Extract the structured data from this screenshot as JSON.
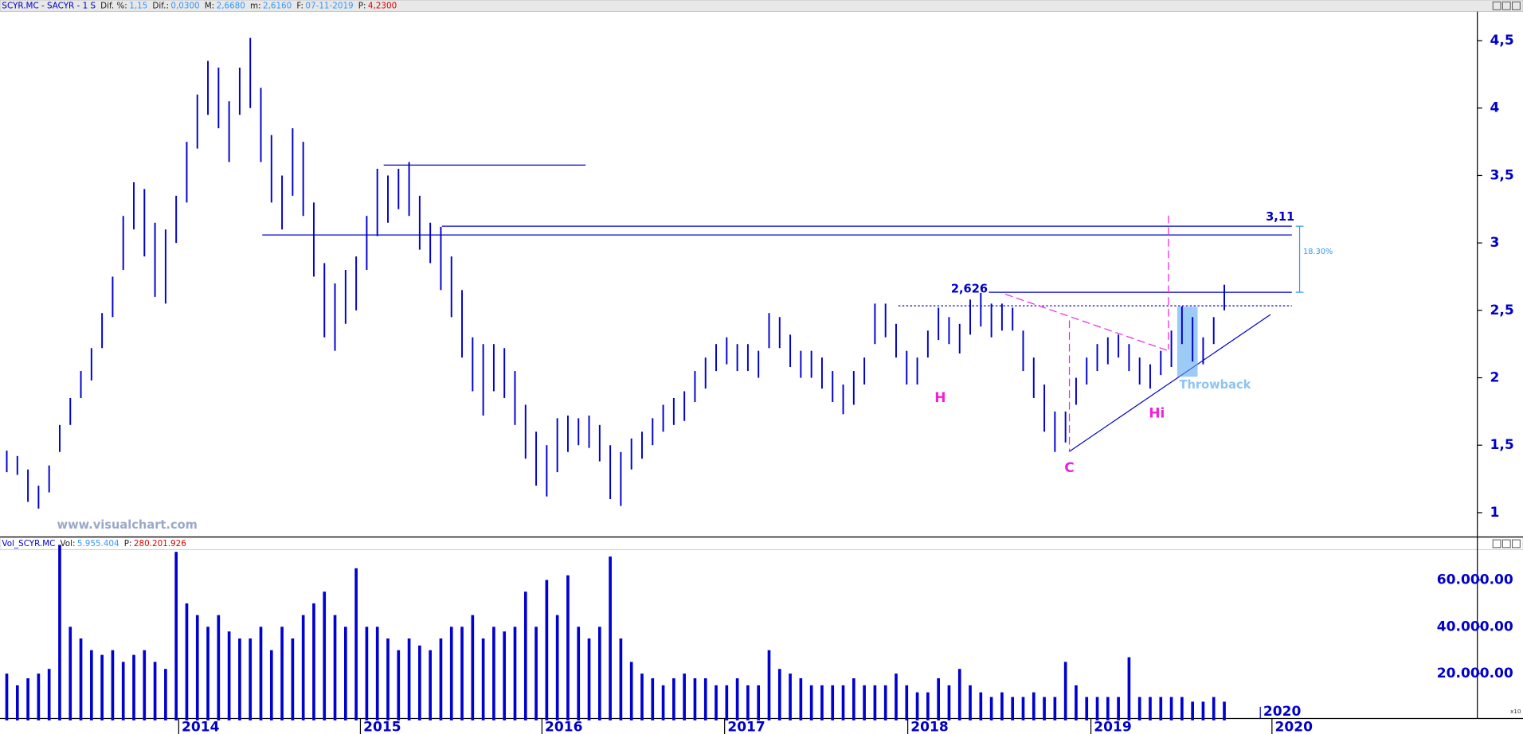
{
  "chart_data": [
    {
      "type": "ohlc",
      "header": {
        "title": "SCYR.MC - SACYR -  1 S",
        "fields": [
          {
            "label": "Dif. %:",
            "value": "1,15"
          },
          {
            "label": "Dif.:",
            "value": "0,0300"
          },
          {
            "label": "M:",
            "value": "2,6680"
          },
          {
            "label": "m:",
            "value": "2,6160"
          },
          {
            "label": "F:",
            "value": "07-11-2019"
          },
          {
            "label": "P:",
            "value": "4,2300",
            "color": "#e00000"
          }
        ]
      },
      "watermark": "www.visualchart.com",
      "annotations": [
        "3,11",
        "2,626",
        "18.30%",
        "H",
        "C",
        "Hi",
        "Throwback"
      ],
      "color": "#0000d0",
      "high": [
        1.46,
        1.42,
        1.32,
        1.2,
        1.35,
        1.65,
        1.85,
        2.05,
        2.22,
        2.48,
        2.75,
        3.2,
        3.45,
        3.4,
        3.15,
        3.1,
        3.35,
        3.75,
        4.1,
        4.35,
        4.3,
        4.05,
        4.3,
        4.52,
        4.15,
        3.8,
        3.5,
        3.85,
        3.75,
        3.3,
        2.85,
        2.7,
        2.8,
        2.9,
        3.2,
        3.55,
        3.5,
        3.55,
        3.6,
        3.35,
        3.15,
        3.12,
        2.9,
        2.65,
        2.3,
        2.25,
        2.25,
        2.22,
        2.05,
        1.8,
        1.6,
        1.5,
        1.7,
        1.72,
        1.7,
        1.72,
        1.65,
        1.5,
        1.45,
        1.55,
        1.6,
        1.7,
        1.8,
        1.85,
        1.9,
        2.05,
        2.15,
        2.25,
        2.3,
        2.25,
        2.25,
        2.2,
        2.48,
        2.45,
        2.32,
        2.2,
        2.2,
        2.15,
        2.05,
        1.95,
        2.05,
        2.15,
        2.55,
        2.55,
        2.4,
        2.2,
        2.15,
        2.35,
        2.52,
        2.45,
        2.4,
        2.58,
        2.63,
        2.55,
        2.55,
        2.52,
        2.35,
        2.15,
        1.95,
        1.75,
        1.75,
        2.0,
        2.15,
        2.25,
        2.3,
        2.32,
        2.25,
        2.15,
        2.1,
        2.2,
        2.35,
        2.53,
        2.45,
        2.3,
        2.45,
        2.69
      ],
      "low": [
        1.3,
        1.28,
        1.08,
        1.03,
        1.15,
        1.45,
        1.65,
        1.85,
        1.98,
        2.22,
        2.45,
        2.8,
        3.1,
        2.9,
        2.6,
        2.55,
        3.0,
        3.3,
        3.7,
        3.95,
        3.85,
        3.6,
        3.95,
        4.0,
        3.6,
        3.3,
        3.1,
        3.35,
        3.2,
        2.75,
        2.3,
        2.2,
        2.4,
        2.5,
        2.8,
        3.05,
        3.15,
        3.25,
        3.2,
        2.95,
        2.85,
        2.65,
        2.45,
        2.15,
        1.9,
        1.72,
        1.9,
        1.85,
        1.65,
        1.4,
        1.2,
        1.12,
        1.3,
        1.45,
        1.5,
        1.48,
        1.38,
        1.1,
        1.05,
        1.32,
        1.4,
        1.5,
        1.6,
        1.65,
        1.68,
        1.82,
        1.92,
        2.05,
        2.1,
        2.05,
        2.05,
        2.0,
        2.22,
        2.22,
        2.08,
        2.0,
        2.0,
        1.92,
        1.82,
        1.73,
        1.8,
        1.95,
        2.25,
        2.3,
        2.15,
        1.95,
        1.95,
        2.15,
        2.28,
        2.25,
        2.18,
        2.32,
        2.38,
        2.3,
        2.35,
        2.35,
        2.05,
        1.85,
        1.6,
        1.45,
        1.52,
        1.8,
        1.95,
        2.05,
        2.1,
        2.15,
        2.05,
        1.95,
        1.92,
        2.02,
        2.08,
        2.25,
        2.12,
        2.1,
        2.25,
        2.5
      ],
      "xlim": [
        -0.64,
        138.9
      ],
      "ylim": [
        0.82,
        4.715
      ],
      "yticks": [
        {
          "value": 4.5,
          "label": "4,5"
        },
        4,
        {
          "value": 3.5,
          "label": "3,5"
        },
        3,
        {
          "value": 2.5,
          "label": "2,5"
        },
        2,
        {
          "value": 1.5,
          "label": "1,5"
        },
        1
      ]
    },
    {
      "type": "bar",
      "header": {
        "title": "Vol_SCYR.MC",
        "fields": [
          {
            "label": "Vol:",
            "value": "5.955.404"
          },
          {
            "label": "P:",
            "value": "280.201.926",
            "color": "#e00000"
          }
        ]
      },
      "color": "#0000d0",
      "values": [
        20000000,
        15000000,
        18000000,
        20000000,
        22000000,
        75000000,
        40000000,
        35000000,
        30000000,
        28000000,
        30000000,
        25000000,
        28000000,
        30000000,
        25000000,
        22000000,
        72000000,
        50000000,
        45000000,
        40000000,
        45000000,
        38000000,
        35000000,
        35000000,
        40000000,
        30000000,
        40000000,
        35000000,
        45000000,
        50000000,
        55000000,
        45000000,
        40000000,
        65000000,
        40000000,
        40000000,
        35000000,
        30000000,
        35000000,
        32000000,
        30000000,
        35000000,
        40000000,
        40000000,
        45000000,
        35000000,
        40000000,
        38000000,
        40000000,
        55000000,
        40000000,
        60000000,
        45000000,
        62000000,
        40000000,
        35000000,
        40000000,
        70000000,
        35000000,
        25000000,
        20000000,
        18000000,
        15000000,
        18000000,
        20000000,
        18000000,
        18000000,
        15000000,
        15000000,
        18000000,
        15000000,
        15000000,
        30000000,
        22000000,
        20000000,
        18000000,
        15000000,
        15000000,
        15000000,
        15000000,
        18000000,
        15000000,
        15000000,
        15000000,
        20000000,
        15000000,
        12000000,
        12000000,
        18000000,
        15000000,
        22000000,
        15000000,
        12000000,
        10000000,
        12000000,
        10000000,
        10000000,
        12000000,
        10000000,
        10000000,
        25000000,
        15000000,
        10000000,
        10000000,
        10000000,
        10000000,
        27000000,
        10000000,
        10000000,
        10000000,
        10000000,
        10000000,
        8000000,
        8000000,
        10000000,
        8000000
      ],
      "xlim": [
        -0.64,
        138.9
      ],
      "ylim": [
        0,
        73000000
      ],
      "yticks": [
        {
          "value": 20000000,
          "label": "20.000.00"
        },
        {
          "value": 40000000,
          "label": "40.000.00"
        },
        {
          "value": 60000000,
          "label": "60.000.00"
        }
      ],
      "xticks": [
        {
          "value": 16.24,
          "label": "2014"
        },
        {
          "value": 33.4,
          "label": "2015"
        },
        {
          "value": 50.55,
          "label": "2016"
        },
        {
          "value": 67.8,
          "label": "2017"
        },
        {
          "value": 85.1,
          "label": "2018"
        },
        {
          "value": 102.4,
          "label": "2019"
        },
        {
          "value": 119.5,
          "label": "2020"
        }
      ],
      "period_marker": "2020",
      "scale_note": "x10"
    }
  ]
}
